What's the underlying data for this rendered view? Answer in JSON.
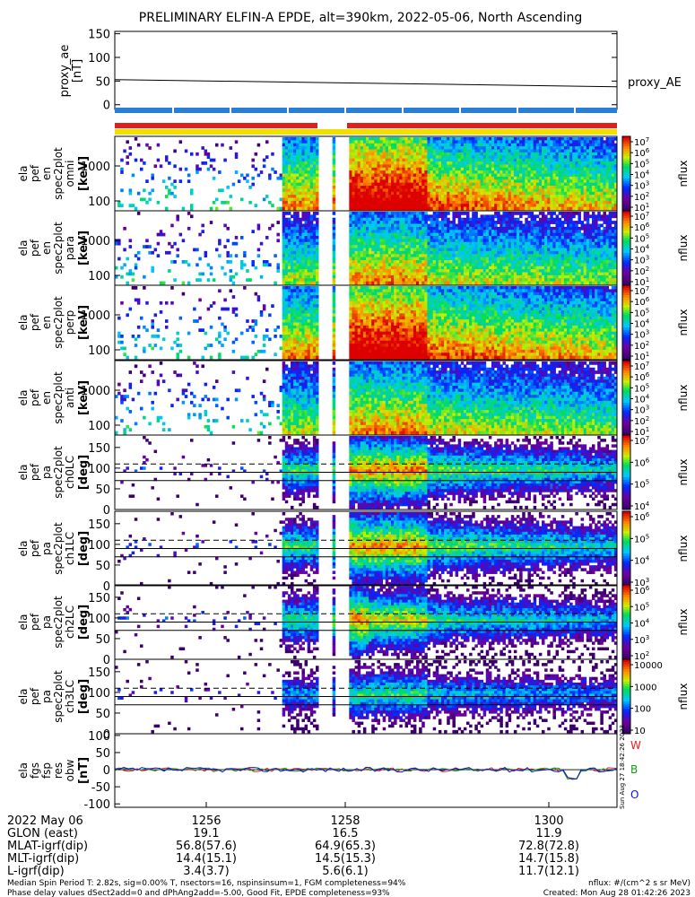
{
  "title": "PRELIMINARY ELFIN-A EPDE, alt=390km, 2022-05-06, North Ascending",
  "colors": {
    "bar_blue": "#2a7fd4",
    "bar_red": "#e0201c",
    "bar_yellow": "#f0e000",
    "line_red": "#e0201c",
    "line_green": "#10a010",
    "line_blue": "#1010e0"
  },
  "chart_data": [
    {
      "type": "line",
      "ylabel": "proxy_ae\n[nT]",
      "ylabel_lines": [
        "proxy_ae",
        "[nT]"
      ],
      "yticks": [
        "150",
        "100",
        "50",
        "0"
      ],
      "ylim": [
        -10,
        155
      ],
      "series": [
        {
          "name": "proxy_AE",
          "x": [
            0,
            1
          ],
          "y": [
            53,
            38
          ]
        }
      ]
    },
    {
      "type": "heatmap",
      "ylabel_lines": [
        "ela",
        "pef",
        "en",
        "spec2plot",
        "omni",
        "[keV]"
      ],
      "yticks": [
        "1000",
        "100"
      ],
      "log_y": true,
      "cbar_ticks": [
        "10^7",
        "10^6",
        "10^5",
        "10^4",
        "10^3",
        "10^2",
        "10^1"
      ],
      "cbar_label": "nflux"
    },
    {
      "type": "heatmap",
      "ylabel_lines": [
        "ela",
        "pef",
        "en",
        "spec2plot",
        "para",
        "[keV]"
      ],
      "yticks": [
        "1000",
        "100"
      ],
      "log_y": true,
      "cbar_ticks": [
        "10^7",
        "10^6",
        "10^5",
        "10^4",
        "10^3",
        "10^2",
        "10^1"
      ],
      "cbar_label": "nflux"
    },
    {
      "type": "heatmap",
      "ylabel_lines": [
        "ela",
        "pef",
        "en",
        "spec2plot",
        "perp",
        "[keV]"
      ],
      "yticks": [
        "1000",
        "100"
      ],
      "log_y": true,
      "cbar_ticks": [
        "10^7",
        "10^6",
        "10^5",
        "10^4",
        "10^3",
        "10^2",
        "10^1"
      ],
      "cbar_label": "nflux"
    },
    {
      "type": "heatmap",
      "ylabel_lines": [
        "ela",
        "pef",
        "en",
        "spec2plot",
        "anti",
        "[keV]"
      ],
      "yticks": [
        "1000",
        "100"
      ],
      "log_y": true,
      "cbar_ticks": [
        "10^7",
        "10^6",
        "10^5",
        "10^4",
        "10^3",
        "10^2",
        "10^1"
      ],
      "cbar_label": "nflux"
    },
    {
      "type": "heatmap",
      "ylabel_lines": [
        "ela",
        "pef",
        "pa",
        "spec2plot",
        "ch0LC",
        "[deg]"
      ],
      "yticks": [
        "150",
        "100",
        "50",
        "0"
      ],
      "ylim": [
        0,
        180
      ],
      "cbar_ticks": [
        "10^7",
        "10^6",
        "10^5",
        "10^4"
      ],
      "cbar_label": "nflux"
    },
    {
      "type": "heatmap",
      "ylabel_lines": [
        "ela",
        "pef",
        "pa",
        "spec2plot",
        "ch1LC",
        "[deg]"
      ],
      "yticks": [
        "150",
        "100",
        "50",
        "0"
      ],
      "ylim": [
        0,
        180
      ],
      "cbar_ticks": [
        "10^6",
        "10^5",
        "10^4",
        "10^3"
      ],
      "cbar_label": "nflux"
    },
    {
      "type": "heatmap",
      "ylabel_lines": [
        "ela",
        "pef",
        "pa",
        "spec2plot",
        "ch2LC",
        "[deg]"
      ],
      "yticks": [
        "150",
        "100",
        "50",
        "0"
      ],
      "ylim": [
        0,
        180
      ],
      "cbar_ticks": [
        "10^6",
        "10^5",
        "10^4",
        "10^3",
        "10^2"
      ],
      "cbar_label": "nflux"
    },
    {
      "type": "heatmap",
      "ylabel_lines": [
        "ela",
        "pef",
        "pa",
        "spec2plot",
        "ch3LC",
        "[deg]"
      ],
      "yticks": [
        "150",
        "100",
        "50",
        "0"
      ],
      "ylim": [
        0,
        180
      ],
      "cbar_ticks": [
        "10000",
        "1000",
        "100",
        "10"
      ],
      "cbar_label": "nflux"
    },
    {
      "type": "line",
      "ylabel_lines": [
        "ela",
        "fgs",
        "fsp",
        "res",
        "obw",
        "[nT]"
      ],
      "yticks": [
        "100",
        "50",
        "0",
        "-50",
        "-100"
      ],
      "ylim": [
        -110,
        105
      ],
      "legend": [
        "W",
        "B",
        "O"
      ]
    }
  ],
  "x_axis": {
    "tick_labels": [
      "1256",
      "1258",
      "1300"
    ],
    "date_label": "2022 May 06",
    "rows": [
      {
        "label": "GLON (east)",
        "values": [
          "19.1",
          "16.5",
          "11.9"
        ]
      },
      {
        "label": "MLAT-igrf(dip)",
        "values": [
          "56.8(57.6)",
          "64.9(65.3)",
          "72.8(72.8)"
        ]
      },
      {
        "label": "MLT-igrf(dip)",
        "values": [
          "14.4(15.1)",
          "14.5(15.3)",
          "14.7(15.8)"
        ]
      },
      {
        "label": "L-igrf(dip)",
        "values": [
          "3.4(3.7)",
          "5.6(6.1)",
          "11.7(12.1)"
        ]
      }
    ]
  },
  "footer": {
    "line1": "Median Spin Period T: 2.82s, sig=0.00% T, nsectors=16, nspinsinsum=1, FGM completeness=94%",
    "line2": "Phase delay values dSect2add=0 and dPhAng2add=-5.00, Good Fit, EPDE completeness=93%",
    "units": "nflux: #/(cm^2 s sr MeV)",
    "created": "Created: Mon Aug 28 01:42:26 2023",
    "side_stamp": "Sun Aug 27 18:42:26 2023"
  }
}
